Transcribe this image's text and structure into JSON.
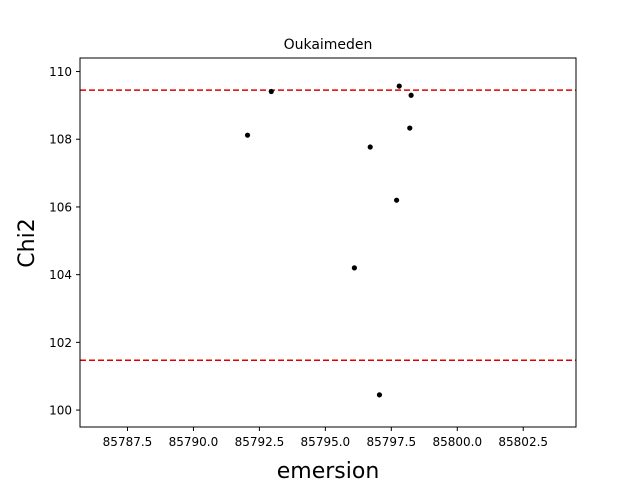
{
  "chart_data": {
    "type": "scatter",
    "title": "Oukaimeden",
    "xlabel": "emersion",
    "ylabel": "Chi2",
    "xlim": [
      85785.7,
      85804.5
    ],
    "ylim": [
      99.5,
      110.4
    ],
    "xticks": [
      85787.5,
      85790.0,
      85792.5,
      85795.0,
      85797.5,
      85800.0,
      85802.5
    ],
    "xtick_labels": [
      "85787.5",
      "85790.0",
      "85792.5",
      "85795.0",
      "85797.5",
      "85800.0",
      "85802.5"
    ],
    "yticks": [
      100,
      102,
      104,
      106,
      108,
      110
    ],
    "ytick_labels": [
      "100",
      "102",
      "104",
      "106",
      "108",
      "110"
    ],
    "grid": false,
    "points": [
      {
        "x": 85792.05,
        "y": 108.12
      },
      {
        "x": 85792.95,
        "y": 109.41
      },
      {
        "x": 85796.1,
        "y": 104.2
      },
      {
        "x": 85796.7,
        "y": 107.77
      },
      {
        "x": 85797.05,
        "y": 100.45
      },
      {
        "x": 85797.7,
        "y": 106.2
      },
      {
        "x": 85797.8,
        "y": 109.57
      },
      {
        "x": 85798.2,
        "y": 108.33
      },
      {
        "x": 85798.25,
        "y": 109.3
      }
    ],
    "hlines": [
      {
        "y": 109.45,
        "color": "#dd0000",
        "style": "dashed"
      },
      {
        "y": 101.47,
        "color": "#dd0000",
        "style": "dashed"
      }
    ],
    "marker_color": "#000000"
  }
}
